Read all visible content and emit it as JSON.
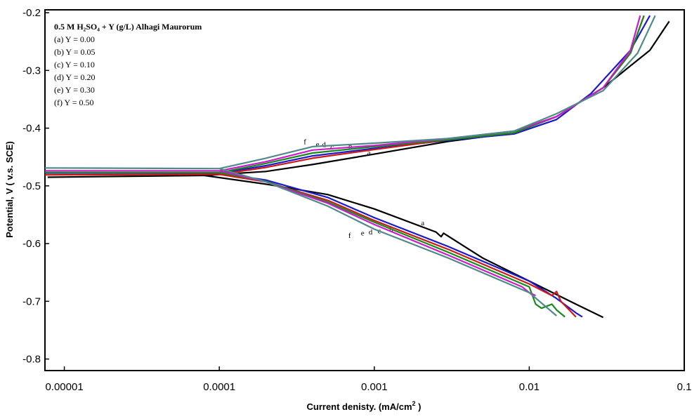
{
  "chart_data": {
    "type": "line",
    "xscale": "log",
    "xlim": [
      7.5e-06,
      0.1
    ],
    "ylim": [
      -0.82,
      -0.195
    ],
    "xticks": [
      "0.00001",
      "0.0001",
      "0.001",
      "0.01",
      "0.1"
    ],
    "yticks": [
      "-0.2",
      "-0.3",
      "-0.4",
      "-0.5",
      "-0.6",
      "-0.7",
      "-0.8"
    ],
    "xlabel": "Current denisty. (mA/cm",
    "xlabel_sup": "2",
    "xlabel_end": " )",
    "ylabel": "Potential, V  ( v.s. SCE)",
    "legend_title": "0.5 M H₂SO₄ + Y (g/L) Alhagi Maurorum",
    "legend_placement": "top-left",
    "grid": false,
    "series": [
      {
        "name": "(a) Y = 0.00",
        "label": "a",
        "color": "#000000",
        "ecorr": -0.483,
        "anodic": [
          [
            7.8e-06,
            -0.485
          ],
          [
            8e-05,
            -0.482
          ],
          [
            0.0002,
            -0.475
          ],
          [
            0.0004,
            -0.463
          ],
          [
            0.001,
            -0.445
          ],
          [
            0.003,
            -0.423
          ],
          [
            0.008,
            -0.408
          ],
          [
            0.015,
            -0.38
          ],
          [
            0.03,
            -0.33
          ],
          [
            0.06,
            -0.265
          ],
          [
            0.08,
            -0.215
          ]
        ],
        "cathodic": [
          [
            8e-05,
            -0.482
          ],
          [
            0.0002,
            -0.497
          ],
          [
            0.0005,
            -0.515
          ],
          [
            0.001,
            -0.54
          ],
          [
            0.0025,
            -0.58
          ],
          [
            0.0027,
            -0.588
          ],
          [
            0.0028,
            -0.582
          ],
          [
            0.005,
            -0.625
          ],
          [
            0.01,
            -0.665
          ],
          [
            0.02,
            -0.705
          ],
          [
            0.03,
            -0.728
          ]
        ],
        "label_anodic": [
          0.0009,
          -0.447
        ],
        "label_cathodic": [
          0.002,
          -0.568
        ]
      },
      {
        "name": "(b) Y = 0.05",
        "label": "b",
        "color": "#1a1acc",
        "ecorr": -0.478,
        "anodic": [
          [
            7.5e-06,
            -0.478
          ],
          [
            0.0001,
            -0.478
          ],
          [
            0.0002,
            -0.465
          ],
          [
            0.0004,
            -0.448
          ],
          [
            0.001,
            -0.435
          ],
          [
            0.003,
            -0.421
          ],
          [
            0.008,
            -0.41
          ],
          [
            0.015,
            -0.385
          ],
          [
            0.025,
            -0.34
          ],
          [
            0.045,
            -0.265
          ],
          [
            0.06,
            -0.205
          ]
        ],
        "cathodic": [
          [
            0.0001,
            -0.478
          ],
          [
            0.0002,
            -0.49
          ],
          [
            0.0005,
            -0.52
          ],
          [
            0.001,
            -0.555
          ],
          [
            0.003,
            -0.605
          ],
          [
            0.01,
            -0.665
          ],
          [
            0.015,
            -0.695
          ],
          [
            0.02,
            -0.72
          ],
          [
            0.022,
            -0.727
          ]
        ],
        "label_anodic": [
          0.00068,
          -0.436
        ],
        "label_cathodic": [
          0.00125,
          -0.58
        ]
      },
      {
        "name": "(c) Y = 0.10",
        "label": "c",
        "color": "#cc1a1a",
        "ecorr": -0.481,
        "anodic": [
          [
            7.5e-06,
            -0.481
          ],
          [
            0.0001,
            -0.48
          ],
          [
            0.0002,
            -0.468
          ],
          [
            0.0004,
            -0.452
          ],
          [
            0.001,
            -0.437
          ],
          [
            0.003,
            -0.42
          ],
          [
            0.008,
            -0.408
          ],
          [
            0.015,
            -0.38
          ],
          [
            0.03,
            -0.33
          ],
          [
            0.045,
            -0.27
          ],
          [
            0.055,
            -0.205
          ]
        ],
        "cathodic": [
          [
            0.0001,
            -0.48
          ],
          [
            0.0002,
            -0.493
          ],
          [
            0.0005,
            -0.525
          ],
          [
            0.001,
            -0.56
          ],
          [
            0.003,
            -0.61
          ],
          [
            0.01,
            -0.67
          ],
          [
            0.014,
            -0.69
          ],
          [
            0.015,
            -0.683
          ],
          [
            0.016,
            -0.7
          ],
          [
            0.02,
            -0.727
          ]
        ],
        "label_anodic": [
          0.00052,
          -0.437
        ],
        "label_cathodic": [
          0.00105,
          -0.582
        ]
      },
      {
        "name": "(d) Y = 0.20",
        "label": "d",
        "color": "#1a8a1a",
        "ecorr": -0.477,
        "anodic": [
          [
            7.5e-06,
            -0.477
          ],
          [
            0.0001,
            -0.477
          ],
          [
            0.0002,
            -0.461
          ],
          [
            0.0004,
            -0.443
          ],
          [
            0.001,
            -0.432
          ],
          [
            0.003,
            -0.42
          ],
          [
            0.008,
            -0.408
          ],
          [
            0.015,
            -0.38
          ],
          [
            0.03,
            -0.33
          ],
          [
            0.045,
            -0.27
          ],
          [
            0.055,
            -0.205
          ]
        ],
        "cathodic": [
          [
            0.0001,
            -0.477
          ],
          [
            0.0002,
            -0.492
          ],
          [
            0.0005,
            -0.528
          ],
          [
            0.001,
            -0.563
          ],
          [
            0.003,
            -0.615
          ],
          [
            0.01,
            -0.675
          ],
          [
            0.011,
            -0.705
          ],
          [
            0.012,
            -0.712
          ],
          [
            0.014,
            -0.705
          ],
          [
            0.015,
            -0.715
          ],
          [
            0.017,
            -0.727
          ]
        ],
        "label_anodic": [
          0.00046,
          -0.433
        ],
        "label_cathodic": [
          0.00092,
          -0.584
        ]
      },
      {
        "name": "(e) Y = 0.30",
        "label": "e",
        "color": "#cc1acc",
        "ecorr": -0.474,
        "anodic": [
          [
            7.5e-06,
            -0.474
          ],
          [
            0.0001,
            -0.474
          ],
          [
            0.0002,
            -0.458
          ],
          [
            0.0004,
            -0.438
          ],
          [
            0.001,
            -0.43
          ],
          [
            0.003,
            -0.418
          ],
          [
            0.008,
            -0.405
          ],
          [
            0.015,
            -0.38
          ],
          [
            0.03,
            -0.33
          ],
          [
            0.045,
            -0.265
          ],
          [
            0.052,
            -0.205
          ]
        ],
        "cathodic": [
          [
            0.0001,
            -0.474
          ],
          [
            0.0002,
            -0.493
          ],
          [
            0.0005,
            -0.53
          ],
          [
            0.001,
            -0.567
          ],
          [
            0.003,
            -0.62
          ],
          [
            0.009,
            -0.675
          ],
          [
            0.01,
            -0.685
          ],
          [
            0.011,
            -0.69
          ]
        ],
        "label_anodic": [
          0.00042,
          -0.432
        ],
        "label_cathodic": [
          0.00082,
          -0.586
        ]
      },
      {
        "name": "(f)  Y = 0.50",
        "label": "f",
        "color": "#4f8a8a",
        "ecorr": -0.469,
        "anodic": [
          [
            7.5e-06,
            -0.469
          ],
          [
            0.0001,
            -0.47
          ],
          [
            0.0002,
            -0.452
          ],
          [
            0.0004,
            -0.432
          ],
          [
            0.001,
            -0.426
          ],
          [
            0.003,
            -0.418
          ],
          [
            0.008,
            -0.405
          ],
          [
            0.015,
            -0.375
          ],
          [
            0.03,
            -0.335
          ],
          [
            0.05,
            -0.27
          ],
          [
            0.065,
            -0.205
          ]
        ],
        "cathodic": [
          [
            0.0001,
            -0.47
          ],
          [
            0.0002,
            -0.493
          ],
          [
            0.0005,
            -0.535
          ],
          [
            0.001,
            -0.575
          ],
          [
            0.003,
            -0.625
          ],
          [
            0.01,
            -0.685
          ],
          [
            0.015,
            -0.725
          ]
        ],
        "label_anodic": [
          0.00035,
          -0.428
        ],
        "label_cathodic": [
          0.00068,
          -0.59
        ]
      }
    ]
  }
}
